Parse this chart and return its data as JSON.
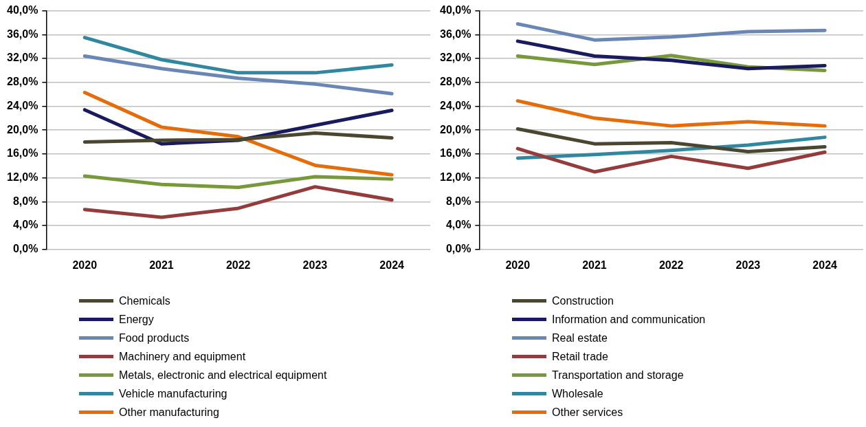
{
  "chart_data": [
    {
      "type": "line",
      "categories": [
        "2020",
        "2021",
        "2022",
        "2023",
        "2024"
      ],
      "ylim": [
        0,
        40
      ],
      "yticks": [
        {
          "value": 0,
          "label": "0,0%"
        },
        {
          "value": 4,
          "label": "4,0%"
        },
        {
          "value": 8,
          "label": "8,0%"
        },
        {
          "value": 12,
          "label": "12,0%"
        },
        {
          "value": 16,
          "label": "16,0%"
        },
        {
          "value": 20,
          "label": "20,0%"
        },
        {
          "value": 24,
          "label": "24,0%"
        },
        {
          "value": 28,
          "label": "28,0%"
        },
        {
          "value": 32,
          "label": "32,0%"
        },
        {
          "value": 36,
          "label": "36,0%"
        },
        {
          "value": 40,
          "label": "40,0%"
        }
      ],
      "grid": "y",
      "legend": "bottom",
      "marker": "none",
      "line_style": "solid",
      "series": [
        {
          "name": "Chemicals",
          "color": "#4a4630",
          "values": [
            18.0,
            18.3,
            18.4,
            19.5,
            18.7
          ]
        },
        {
          "name": "Energy",
          "color": "#1a1a5e",
          "values": [
            23.4,
            17.7,
            18.3,
            20.8,
            23.3
          ]
        },
        {
          "name": "Food products",
          "color": "#6a86b4",
          "values": [
            32.4,
            30.3,
            28.7,
            27.7,
            26.1
          ]
        },
        {
          "name": "Machinery and equipment",
          "color": "#943c3c",
          "values": [
            6.7,
            5.4,
            6.9,
            10.5,
            8.3
          ]
        },
        {
          "name": "Metals, electronic and electrical equipment",
          "color": "#77993c",
          "values": [
            12.3,
            10.9,
            10.4,
            12.2,
            11.8
          ]
        },
        {
          "name": "Vehicle manufacturing",
          "color": "#31889e",
          "values": [
            35.5,
            31.8,
            29.6,
            29.6,
            30.9
          ]
        },
        {
          "name": "Other manufacturing",
          "color": "#e46c0a",
          "values": [
            26.3,
            20.5,
            18.9,
            14.1,
            12.5
          ]
        }
      ]
    },
    {
      "type": "line",
      "categories": [
        "2020",
        "2021",
        "2022",
        "2023",
        "2024"
      ],
      "ylim": [
        0,
        40
      ],
      "yticks": [
        {
          "value": 0,
          "label": "0,0%"
        },
        {
          "value": 4,
          "label": "4,0%"
        },
        {
          "value": 8,
          "label": "8,0%"
        },
        {
          "value": 12,
          "label": "12,0%"
        },
        {
          "value": 16,
          "label": "16,0%"
        },
        {
          "value": 20,
          "label": "20,0%"
        },
        {
          "value": 24,
          "label": "24,0%"
        },
        {
          "value": 28,
          "label": "28,0%"
        },
        {
          "value": 32,
          "label": "32,0%"
        },
        {
          "value": 36,
          "label": "36,0%"
        },
        {
          "value": 40,
          "label": "40,0%"
        }
      ],
      "grid": "y",
      "legend": "bottom",
      "marker": "none",
      "line_style": "solid",
      "series": [
        {
          "name": "Construction",
          "color": "#4a4630",
          "values": [
            20.2,
            17.7,
            17.9,
            16.4,
            17.2
          ]
        },
        {
          "name": "Information and communication",
          "color": "#1a1a5e",
          "values": [
            34.9,
            32.4,
            31.7,
            30.3,
            30.8
          ]
        },
        {
          "name": "Real estate",
          "color": "#6a86b4",
          "values": [
            37.8,
            35.1,
            35.6,
            36.5,
            36.7
          ]
        },
        {
          "name": "Retail trade",
          "color": "#943c3c",
          "values": [
            16.9,
            13.0,
            15.6,
            13.6,
            16.3
          ]
        },
        {
          "name": "Transportation and storage",
          "color": "#77993c",
          "values": [
            32.4,
            31.0,
            32.5,
            30.6,
            30.0
          ]
        },
        {
          "name": "Wholesale",
          "color": "#31889e",
          "values": [
            15.3,
            15.9,
            16.6,
            17.5,
            18.8
          ]
        },
        {
          "name": "Other services",
          "color": "#e46c0a",
          "values": [
            24.9,
            22.0,
            20.7,
            21.4,
            20.7
          ]
        }
      ]
    }
  ]
}
